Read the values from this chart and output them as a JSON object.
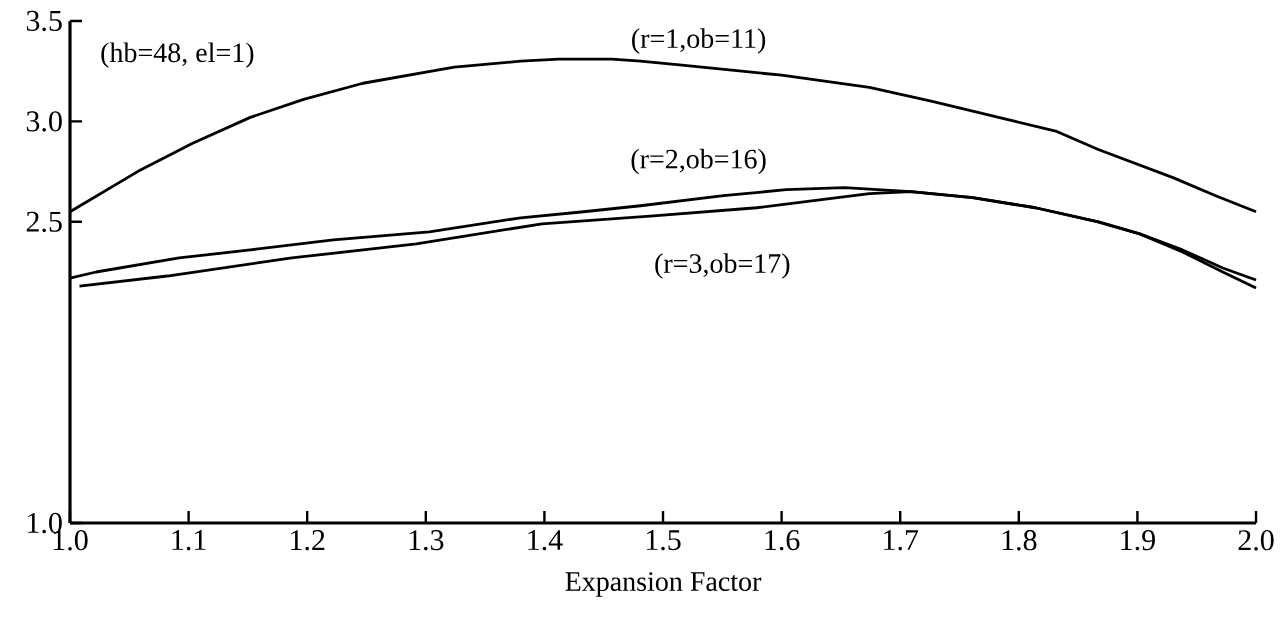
{
  "chart_data": {
    "type": "line",
    "xlabel": "Expansion Factor",
    "annotations": [
      "(hb=48, el=1)"
    ],
    "xlim": [
      1.0,
      2.0
    ],
    "xticks": [
      {
        "value": 1.0,
        "label": "1.0"
      },
      1.1,
      1.2,
      1.3,
      1.4,
      1.5,
      1.6,
      1.7,
      1.8,
      1.9,
      {
        "value": 2.0,
        "label": "2.0"
      }
    ],
    "ylim": [
      1.0,
      3.5
    ],
    "yticks": [
      {
        "value": 1.0,
        "label": "1.0"
      },
      2.5,
      {
        "value": 3.0,
        "label": "3.0"
      },
      3.5
    ],
    "grid": false,
    "legend": false,
    "marker": "none",
    "line_style": "solid",
    "series": [
      {
        "name": "(r=1,ob=11)",
        "color": "#000000",
        "x": [
          1.0,
          1.057,
          1.103,
          1.152,
          1.197,
          1.247,
          1.324,
          1.38,
          1.412,
          1.457,
          1.481,
          1.516,
          1.6,
          1.674,
          1.727,
          1.79,
          1.832,
          1.867,
          1.93,
          1.966,
          2.0
        ],
        "values": [
          2.55,
          2.75,
          2.89,
          3.02,
          3.11,
          3.19,
          3.27,
          3.3,
          3.31,
          3.31,
          3.3,
          3.28,
          3.23,
          3.17,
          3.1,
          3.01,
          2.95,
          2.86,
          2.72,
          2.63,
          2.55
        ]
      },
      {
        "name": "(r=2,ob=16)",
        "color": "#000000",
        "x": [
          1.0,
          1.022,
          1.092,
          1.152,
          1.222,
          1.303,
          1.38,
          1.433,
          1.481,
          1.551,
          1.604,
          1.653,
          1.709,
          1.761,
          1.814,
          1.867,
          1.902,
          1.938,
          1.972,
          2.0
        ],
        "values": [
          2.22,
          2.25,
          2.32,
          2.36,
          2.41,
          2.45,
          2.52,
          2.55,
          2.58,
          2.63,
          2.66,
          2.67,
          2.65,
          2.62,
          2.57,
          2.5,
          2.44,
          2.36,
          2.27,
          2.21
        ]
      },
      {
        "name": "(r=3,ob=17)",
        "color": "#000000",
        "x": [
          1.008,
          1.082,
          1.187,
          1.292,
          1.398,
          1.492,
          1.579,
          1.674,
          1.709,
          1.761,
          1.814,
          1.867,
          1.902,
          1.938,
          1.972,
          2.0
        ],
        "values": [
          2.18,
          2.23,
          2.32,
          2.39,
          2.49,
          2.53,
          2.57,
          2.64,
          2.65,
          2.62,
          2.57,
          2.5,
          2.44,
          2.35,
          2.25,
          2.17
        ]
      }
    ]
  }
}
